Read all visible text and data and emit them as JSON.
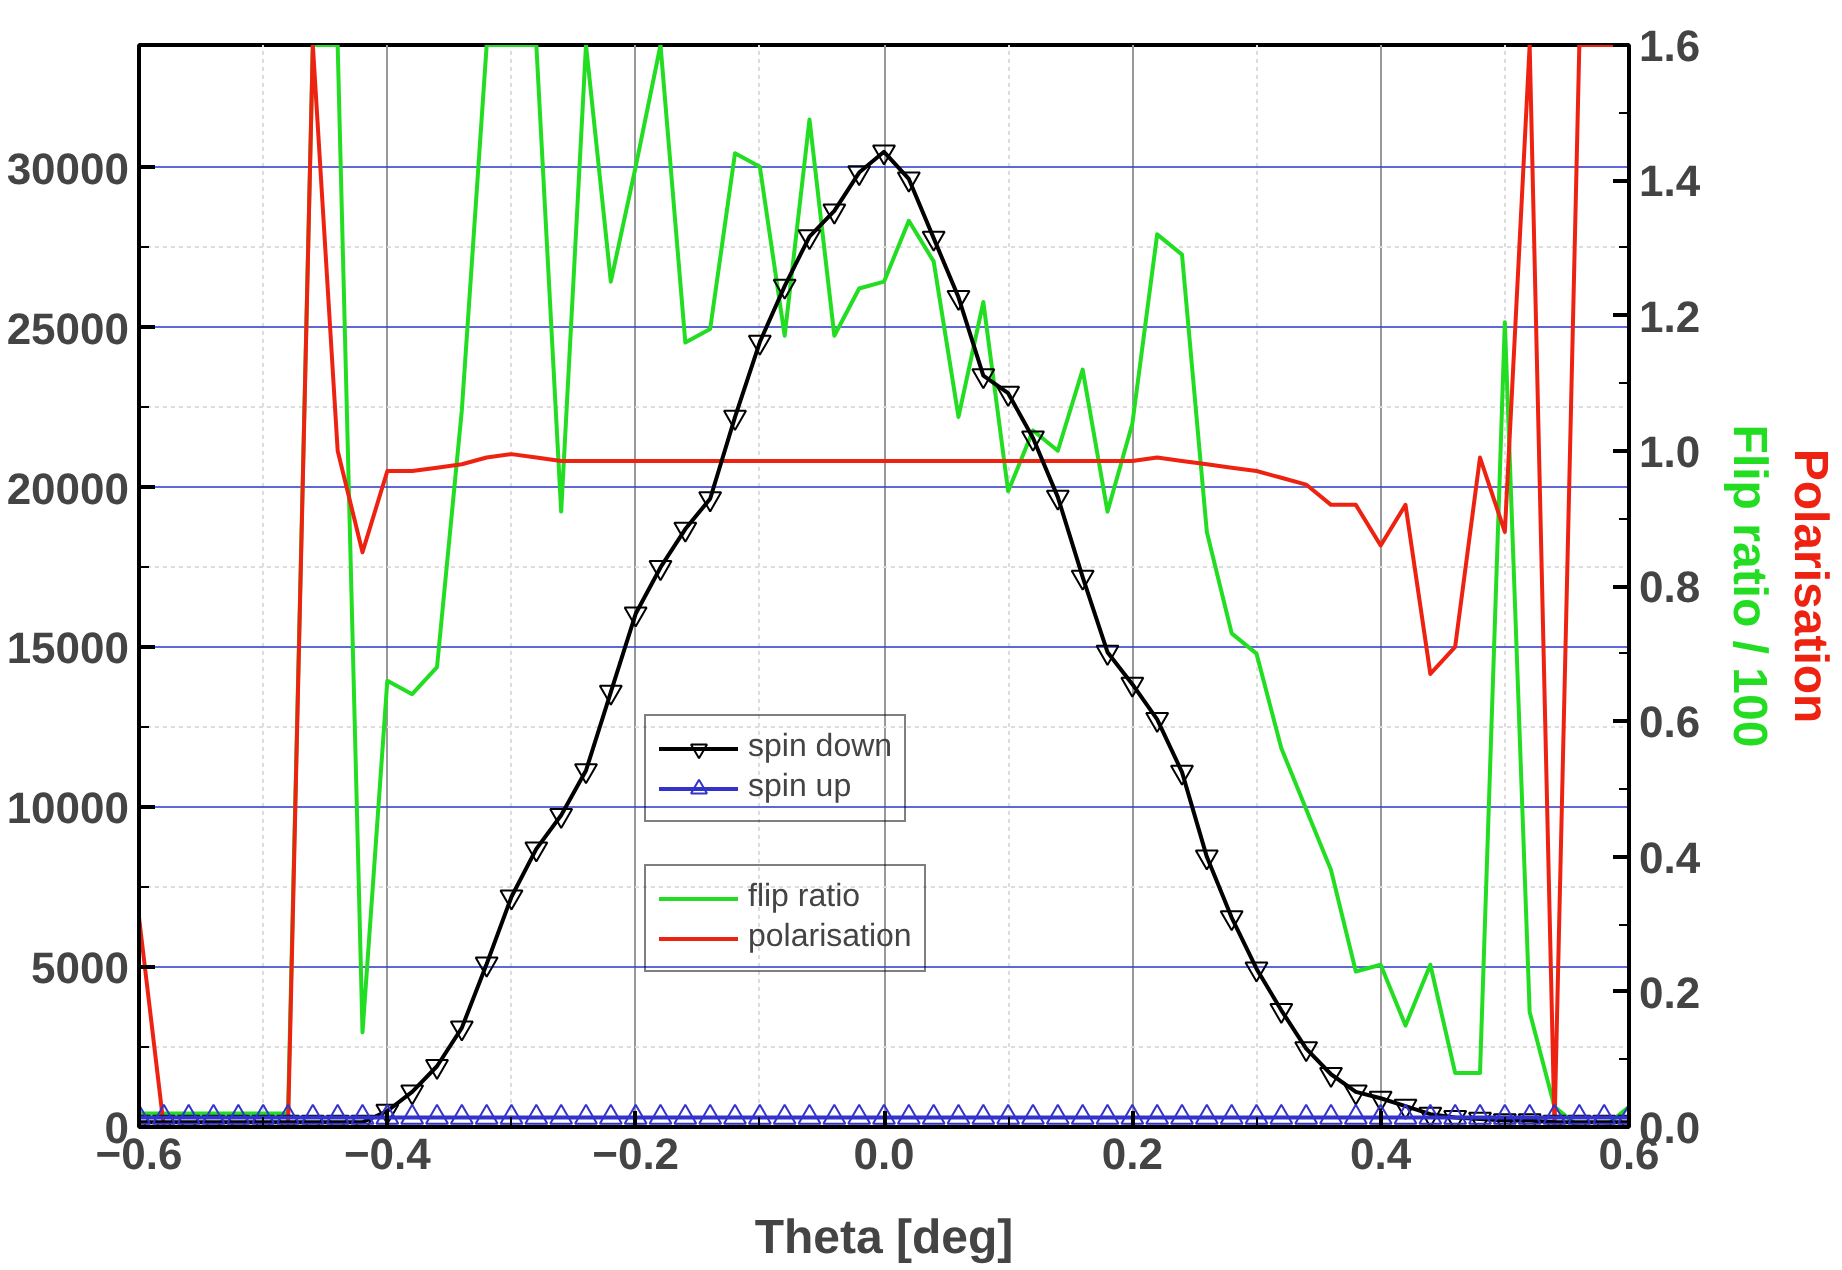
{
  "chart_data": {
    "type": "line",
    "xlabel": "Theta [deg]",
    "y2label": "Flip ratio / 100",
    "annotations": [
      "Polarisation"
    ],
    "x": [
      -0.6,
      -0.58,
      -0.56,
      -0.54,
      -0.52,
      -0.5,
      -0.48,
      -0.46,
      -0.44,
      -0.42,
      -0.4,
      -0.38,
      -0.36,
      -0.34,
      -0.32,
      -0.3,
      -0.28,
      -0.26,
      -0.24,
      -0.22,
      -0.2,
      -0.18,
      -0.16,
      -0.14,
      -0.12,
      -0.1,
      -0.08,
      -0.06,
      -0.04,
      -0.02,
      0,
      0.02,
      0.04,
      0.06,
      0.08,
      0.1,
      0.12,
      0.14,
      0.16,
      0.18,
      0.2,
      0.22,
      0.24,
      0.26,
      0.28,
      0.3,
      0.32,
      0.34,
      0.36,
      0.38,
      0.4,
      0.42,
      0.44,
      0.46,
      0.48,
      0.5,
      0.52,
      0.54,
      0.56,
      0.58,
      0.6
    ],
    "series": [
      {
        "name": "spin down",
        "color": "#000000",
        "marker": "triangle",
        "values": [
          150,
          150,
          150,
          150,
          150,
          150,
          150,
          150,
          150,
          150,
          500,
          1100,
          1900,
          3100,
          5100,
          7200,
          8700,
          9750,
          11150,
          13600,
          16050,
          17500,
          18700,
          19650,
          22200,
          24550,
          26300,
          27850,
          28650,
          29850,
          30500,
          29650,
          27800,
          25950,
          23500,
          22950,
          21550,
          19700,
          17200,
          14850,
          13850,
          12750,
          11100,
          8450,
          6550,
          4950,
          3650,
          2450,
          1650,
          1100,
          900,
          650,
          400,
          300,
          250,
          200,
          200,
          150,
          150,
          150,
          150
        ]
      },
      {
        "name": "spin up",
        "color": "#3333cc",
        "marker": "triangle",
        "values": [
          300,
          300,
          300,
          300,
          300,
          300,
          300,
          300,
          300,
          300,
          300,
          300,
          300,
          300,
          300,
          300,
          300,
          300,
          300,
          300,
          300,
          300,
          300,
          300,
          300,
          300,
          300,
          300,
          300,
          300,
          300,
          300,
          300,
          300,
          300,
          300,
          300,
          300,
          300,
          300,
          300,
          300,
          300,
          300,
          300,
          300,
          300,
          300,
          300,
          300,
          300,
          300,
          300,
          300,
          300,
          300,
          300,
          300,
          300,
          300,
          300
        ]
      },
      {
        "name": "flip ratio",
        "color": "#22dd22",
        "axis": "y2",
        "values": [
          0.02,
          0.02,
          0.02,
          0.02,
          0.02,
          0.02,
          0.02,
          1.6,
          1.6,
          0.14,
          0.66,
          0.64,
          0.68,
          1.06,
          1.6,
          1.6,
          1.6,
          0.91,
          1.6,
          1.25,
          1.42,
          1.6,
          1.16,
          1.18,
          1.44,
          1.42,
          1.17,
          1.49,
          1.17,
          1.24,
          1.25,
          1.34,
          1.28,
          1.05,
          1.22,
          0.94,
          1.03,
          1.0,
          1.12,
          0.91,
          1.04,
          1.32,
          1.29,
          0.88,
          0.73,
          0.7,
          0.56,
          0.47,
          0.38,
          0.23,
          0.24,
          0.15,
          0.24,
          0.08,
          0.08,
          1.19,
          0.17,
          0.03,
          0.0,
          0.0,
          0.03
        ]
      },
      {
        "name": "polarisation",
        "color": "#ee2211",
        "axis": "y2",
        "values": [
          0.31,
          0.0,
          null,
          null,
          null,
          null,
          0.0,
          1.6,
          1.0,
          0.85,
          0.97,
          0.97,
          0.975,
          0.98,
          0.99,
          0.995,
          0.99,
          0.985,
          0.985,
          0.985,
          0.985,
          0.985,
          0.985,
          0.985,
          0.985,
          0.985,
          0.985,
          0.985,
          0.985,
          0.985,
          0.985,
          0.985,
          0.985,
          0.985,
          0.985,
          0.985,
          0.985,
          0.985,
          0.985,
          0.985,
          0.985,
          0.99,
          0.985,
          0.98,
          0.975,
          0.97,
          0.96,
          0.95,
          0.92,
          0.92,
          0.86,
          0.92,
          0.67,
          0.71,
          0.99,
          0.88,
          1.6,
          0.0,
          1.6,
          1.6,
          1.6
        ]
      }
    ],
    "xlim": [
      -0.6,
      0.6
    ],
    "xticks": [
      -0.6,
      -0.4,
      -0.2,
      {
        "value": 0,
        "label": "0.0"
      },
      0.2,
      0.4,
      0.6
    ],
    "ylim": [
      0,
      33840
    ],
    "yticks": [
      0,
      5000,
      10000,
      15000,
      20000,
      25000,
      30000
    ],
    "y2lim": [
      0,
      1.6
    ],
    "y2ticks": [
      {
        "value": 0,
        "label": "0.0"
      },
      0.2,
      0.4,
      0.6,
      0.8,
      {
        "value": 1,
        "label": "1.0"
      },
      1.2,
      1.4,
      1.6
    ],
    "grid": true,
    "legend": "center"
  }
}
